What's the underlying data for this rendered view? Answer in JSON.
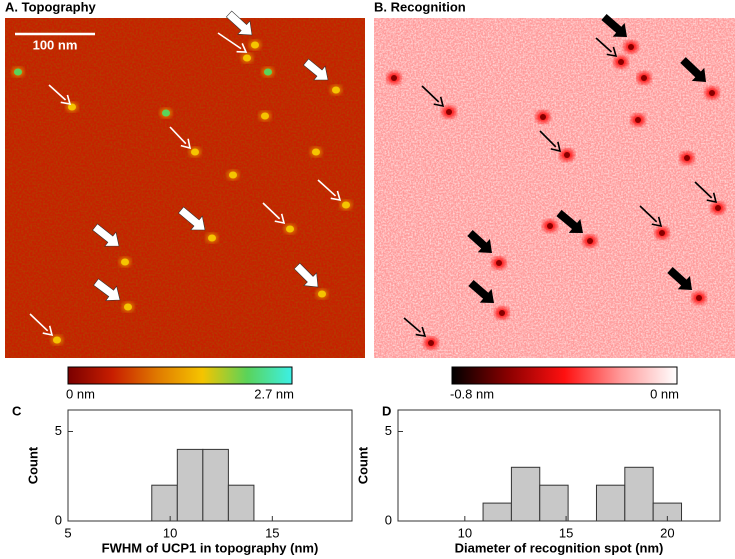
{
  "chart_data": [
    {
      "type": "image",
      "title": "A. Topography",
      "scale_bar": "100 nm",
      "colorbar_labels": [
        "0 nm",
        "2.7 nm"
      ],
      "colormap": [
        "#7a0000",
        "#c81e00",
        "#e07a00",
        "#f5c400",
        "#5ad35a",
        "#3cf0e6"
      ]
    },
    {
      "type": "image",
      "title": "B. Recognition",
      "colorbar_labels": [
        "-0.8 nm",
        "0 nm"
      ],
      "colormap": [
        "#000000",
        "#8a0000",
        "#ff1010",
        "#ff9a9a",
        "#ffffff"
      ]
    },
    {
      "type": "histogram",
      "title": "C",
      "xlabel": "FWHM of UCP1 in topography (nm)",
      "ylabel": "Count",
      "bins": [
        9.1,
        10.35,
        11.6,
        12.85,
        14.1
      ],
      "counts": [
        2,
        4,
        4,
        2
      ],
      "color": "#c8c8c8",
      "xlim": [
        5,
        18.9
      ],
      "xticks": [
        5,
        10,
        15
      ],
      "ylim": [
        0,
        6.2
      ],
      "yticks": [
        0,
        5
      ]
    },
    {
      "type": "histogram",
      "title": "D",
      "xlabel": "Diameter of recognition spot (nm)",
      "ylabel": "Count",
      "bins": [
        10.9,
        12.3,
        13.7,
        15.1,
        16.5,
        17.9,
        19.3,
        20.7
      ],
      "counts": [
        1,
        3,
        2,
        0,
        2,
        3,
        1
      ],
      "color": "#c8c8c8",
      "xlim": [
        6.7,
        22.6
      ],
      "xticks": [
        10,
        15,
        20
      ],
      "ylim": [
        0,
        6.2
      ],
      "yticks": [
        0,
        5
      ]
    }
  ]
}
